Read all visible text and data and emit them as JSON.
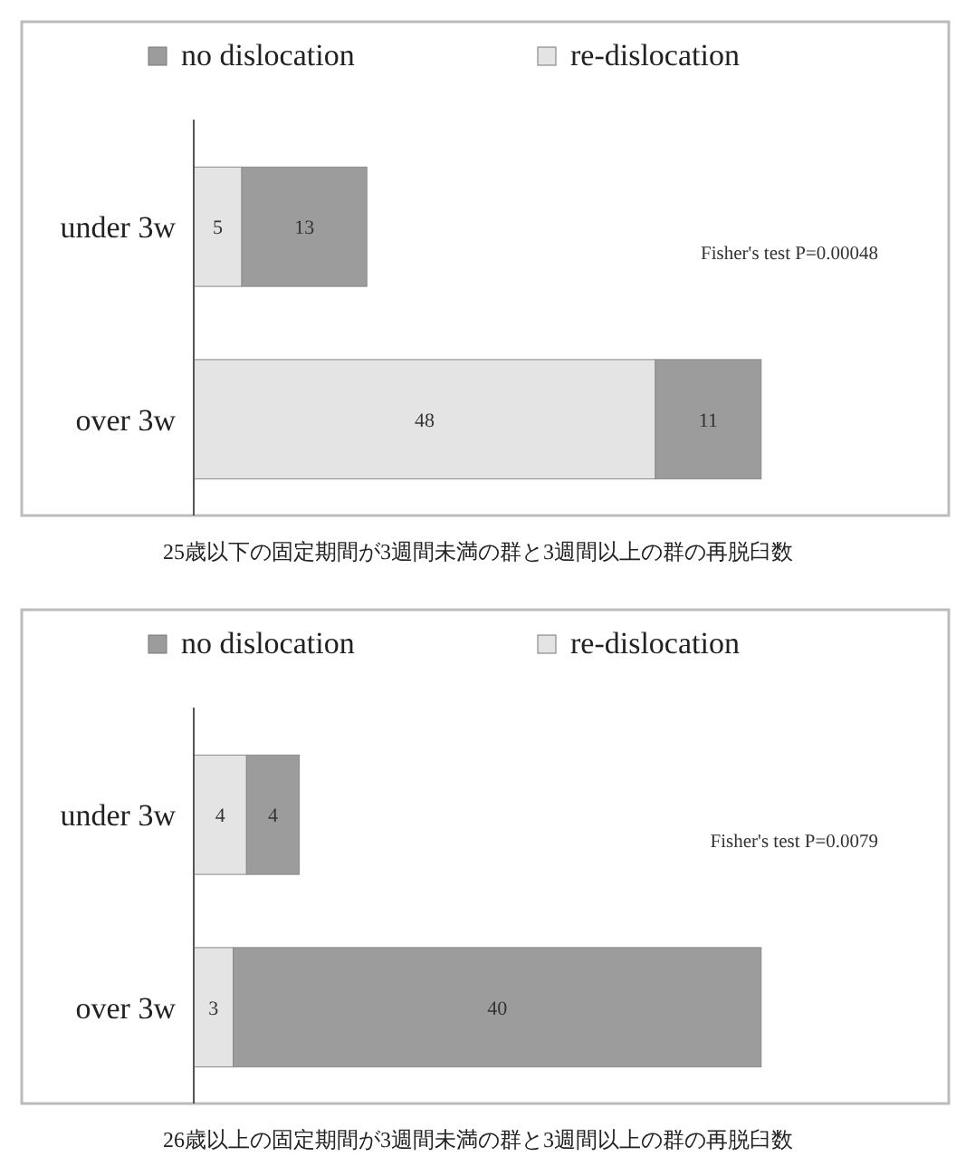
{
  "chart_data": [
    {
      "type": "bar",
      "orientation": "horizontal",
      "stacked": true,
      "categories": [
        "under 3w",
        "over 3w"
      ],
      "series": [
        {
          "name": "re-dislocation",
          "color": "#e4e4e4",
          "values": [
            5,
            48
          ]
        },
        {
          "name": "no dislocation",
          "color": "#9c9c9c",
          "values": [
            13,
            11
          ]
        }
      ],
      "data_labels": true,
      "legend": "top",
      "grid": false,
      "annotations": [
        "Fisher's test  P=0.00048",
        "25歳以下の固定期間が3週間未満の群と3週間以上の群の再脱臼数"
      ]
    },
    {
      "type": "bar",
      "orientation": "horizontal",
      "stacked": true,
      "categories": [
        "under 3w",
        "over 3w"
      ],
      "series": [
        {
          "name": "re-dislocation",
          "color": "#e4e4e4",
          "values": [
            4,
            3
          ]
        },
        {
          "name": "no dislocation",
          "color": "#9c9c9c",
          "values": [
            4,
            40
          ]
        }
      ],
      "data_labels": true,
      "legend": "top",
      "grid": false,
      "annotations": [
        "Fisher's test  P=0.0079",
        "26歳以上の固定期間が3週間未満の群と3週間以上の群の再脱臼数"
      ]
    }
  ]
}
